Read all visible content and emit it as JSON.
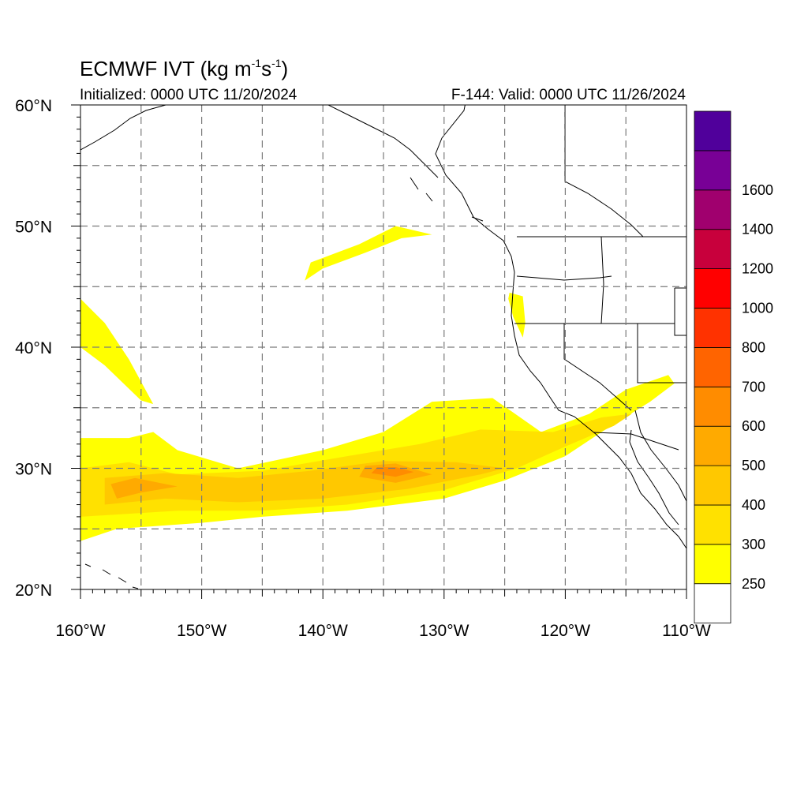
{
  "header": {
    "title_prefix": "ECMWF IVT (kg m",
    "title_exp1": "-1",
    "title_mid": "s",
    "title_exp2": "-1",
    "title_suffix": ")",
    "initialized": "Initialized: 0000 UTC 11/20/2024",
    "valid": "F-144: Valid: 0000 UTC 11/26/2024"
  },
  "map": {
    "projection": "cylindrical-equidistant",
    "lon_range": [
      -160,
      -110
    ],
    "lat_range": [
      20,
      60
    ],
    "grid": true,
    "lat_labels": [
      {
        "lat": 60,
        "label": "60°N"
      },
      {
        "lat": 50,
        "label": "50°N"
      },
      {
        "lat": 40,
        "label": "40°N"
      },
      {
        "lat": 30,
        "label": "30°N"
      },
      {
        "lat": 20,
        "label": "20°N"
      }
    ],
    "lon_labels": [
      {
        "lon": -160,
        "label": "160°W"
      },
      {
        "lon": -150,
        "label": "150°W"
      },
      {
        "lon": -140,
        "label": "140°W"
      },
      {
        "lon": -130,
        "label": "130°W"
      },
      {
        "lon": -120,
        "label": "120°W"
      },
      {
        "lon": -110,
        "label": "110°W"
      }
    ]
  },
  "colorbar": {
    "placement": "right",
    "colors": [
      "#ffff00",
      "#ffe100",
      "#ffc800",
      "#ffaa00",
      "#ff8c00",
      "#ff6400",
      "#ff3200",
      "#ff0000",
      "#c8003c",
      "#a0006e",
      "#780096",
      "#50009b"
    ],
    "labels": [
      "250",
      "300",
      "400",
      "500",
      "600",
      "700",
      "800",
      "1000",
      "1200",
      "1400",
      "1600"
    ],
    "bottom_color": "#ffffff"
  },
  "chart_data": {
    "type": "heatmap",
    "variable": "IVT",
    "units": "kg m-1 s-1",
    "levels": [
      250,
      300,
      400,
      500,
      600,
      700,
      800,
      1000,
      1200,
      1400,
      1600
    ],
    "features": [
      {
        "feature": "main-atmospheric-river",
        "level_250": [
          [
            -160,
            24
          ],
          [
            -157,
            25
          ],
          [
            -150,
            25.5
          ],
          [
            -145,
            26
          ],
          [
            -138,
            26.5
          ],
          [
            -130,
            27.5
          ],
          [
            -125,
            29
          ],
          [
            -120,
            31
          ],
          [
            -117,
            33
          ],
          [
            -113,
            35.5
          ],
          [
            -111,
            37
          ],
          [
            -111.5,
            37.7
          ],
          [
            -115,
            36.5
          ],
          [
            -118,
            34.5
          ],
          [
            -122,
            33
          ],
          [
            -126,
            35.8
          ],
          [
            -131,
            35.5
          ],
          [
            -135,
            33
          ],
          [
            -140,
            31.5
          ],
          [
            -147,
            30
          ],
          [
            -152,
            31.5
          ],
          [
            -154,
            33
          ],
          [
            -156,
            32.5
          ],
          [
            -160,
            32.5
          ]
        ],
        "level_300": [
          [
            -160,
            26
          ],
          [
            -152,
            26.5
          ],
          [
            -145,
            26.5
          ],
          [
            -138,
            27
          ],
          [
            -130,
            28.2
          ],
          [
            -124,
            30
          ],
          [
            -120,
            31.8
          ],
          [
            -116,
            33.5
          ],
          [
            -114.5,
            34.5
          ],
          [
            -117,
            34.2
          ],
          [
            -121,
            33
          ],
          [
            -127,
            33.2
          ],
          [
            -132,
            32
          ],
          [
            -138,
            31
          ],
          [
            -145,
            29.8
          ],
          [
            -152,
            29.5
          ],
          [
            -156,
            30.5
          ],
          [
            -160,
            30
          ]
        ],
        "level_400": [
          [
            -158,
            27
          ],
          [
            -153,
            27.5
          ],
          [
            -147,
            27.2
          ],
          [
            -140,
            27.5
          ],
          [
            -133,
            28.3
          ],
          [
            -127,
            29.5
          ],
          [
            -125,
            30
          ],
          [
            -129,
            30.5
          ],
          [
            -135,
            30.6
          ],
          [
            -141,
            29.8
          ],
          [
            -147,
            29.2
          ],
          [
            -153,
            29.6
          ],
          [
            -158,
            29.2
          ]
        ],
        "level_500": [
          [
            -157,
            27.5
          ],
          [
            -155,
            28
          ],
          [
            -152,
            28.5
          ],
          [
            -155.5,
            29.2
          ],
          [
            -157.5,
            28.7
          ]
        ],
        "level_500b": [
          [
            -137,
            29.3
          ],
          [
            -134,
            28.8
          ],
          [
            -131,
            29.5
          ],
          [
            -134,
            30.4
          ],
          [
            -136.5,
            30.2
          ]
        ],
        "level_600": [
          [
            -136,
            29.6
          ],
          [
            -134,
            29.3
          ],
          [
            -132.5,
            29.7
          ],
          [
            -134,
            30.1
          ],
          [
            -135.5,
            30.1
          ]
        ]
      },
      {
        "feature": "secondary-plume-northwest",
        "level_250": [
          [
            -160,
            44
          ],
          [
            -158,
            42
          ],
          [
            -156,
            39
          ],
          [
            -154,
            35.3
          ],
          [
            -155,
            35.6
          ],
          [
            -158,
            38.5
          ],
          [
            -160,
            40
          ]
        ]
      },
      {
        "feature": "plume-near-50N",
        "level_250": [
          [
            -141,
            47
          ],
          [
            -137,
            48.5
          ],
          [
            -134,
            50
          ],
          [
            -131,
            49.3
          ],
          [
            -133.5,
            49
          ],
          [
            -136.5,
            47.8
          ],
          [
            -140,
            46.5
          ],
          [
            -141.5,
            45.5
          ]
        ]
      },
      {
        "feature": "coastal-plume-northern-california",
        "level_250": [
          [
            -124.6,
            44.5
          ],
          [
            -123.5,
            44.2
          ],
          [
            -123.3,
            42
          ],
          [
            -123.5,
            40.8
          ],
          [
            -124.3,
            42.5
          ],
          [
            -124.7,
            44
          ]
        ]
      }
    ]
  }
}
